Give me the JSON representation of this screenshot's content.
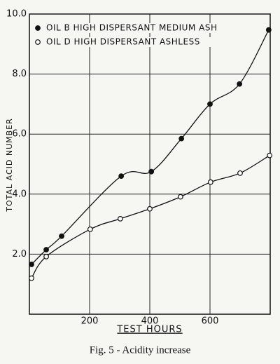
{
  "chart_data": {
    "type": "scatter",
    "xlabel": "TEST HOURS",
    "ylabel": "TOTAL ACID NUMBER",
    "caption": "Fig. 5 - Acidity increase",
    "xlim": [
      0,
      800
    ],
    "xticks": [
      200,
      400,
      600
    ],
    "ylim": [
      0,
      10
    ],
    "yticks": [
      {
        "value": 2,
        "label": "2.0"
      },
      {
        "value": 4,
        "label": "4.0"
      },
      {
        "value": 6,
        "label": "6.0"
      },
      {
        "value": 8,
        "label": "8.0"
      },
      {
        "value": 10,
        "label": "10.0"
      }
    ],
    "grid": true,
    "legend": "upper left",
    "series": [
      {
        "name": "OIL B HIGH DISPERSANT MEDIUM ASH",
        "color": "#111111",
        "fill": "#111111",
        "x": [
          7,
          56,
          107,
          305,
          405,
          505,
          600,
          698,
          795
        ],
        "values": [
          1.66,
          2.15,
          2.6,
          4.6,
          4.75,
          5.85,
          7.0,
          7.67,
          9.47
        ]
      },
      {
        "name": "OIL D HIGH DISPERSANT ASHLESS",
        "color": "#111111",
        "fill": "#ffffff",
        "x": [
          7,
          56,
          202,
          302,
          400,
          502,
          602,
          700,
          798
        ],
        "values": [
          1.2,
          1.92,
          2.83,
          3.18,
          3.51,
          3.91,
          4.4,
          4.7,
          5.29
        ]
      }
    ]
  }
}
